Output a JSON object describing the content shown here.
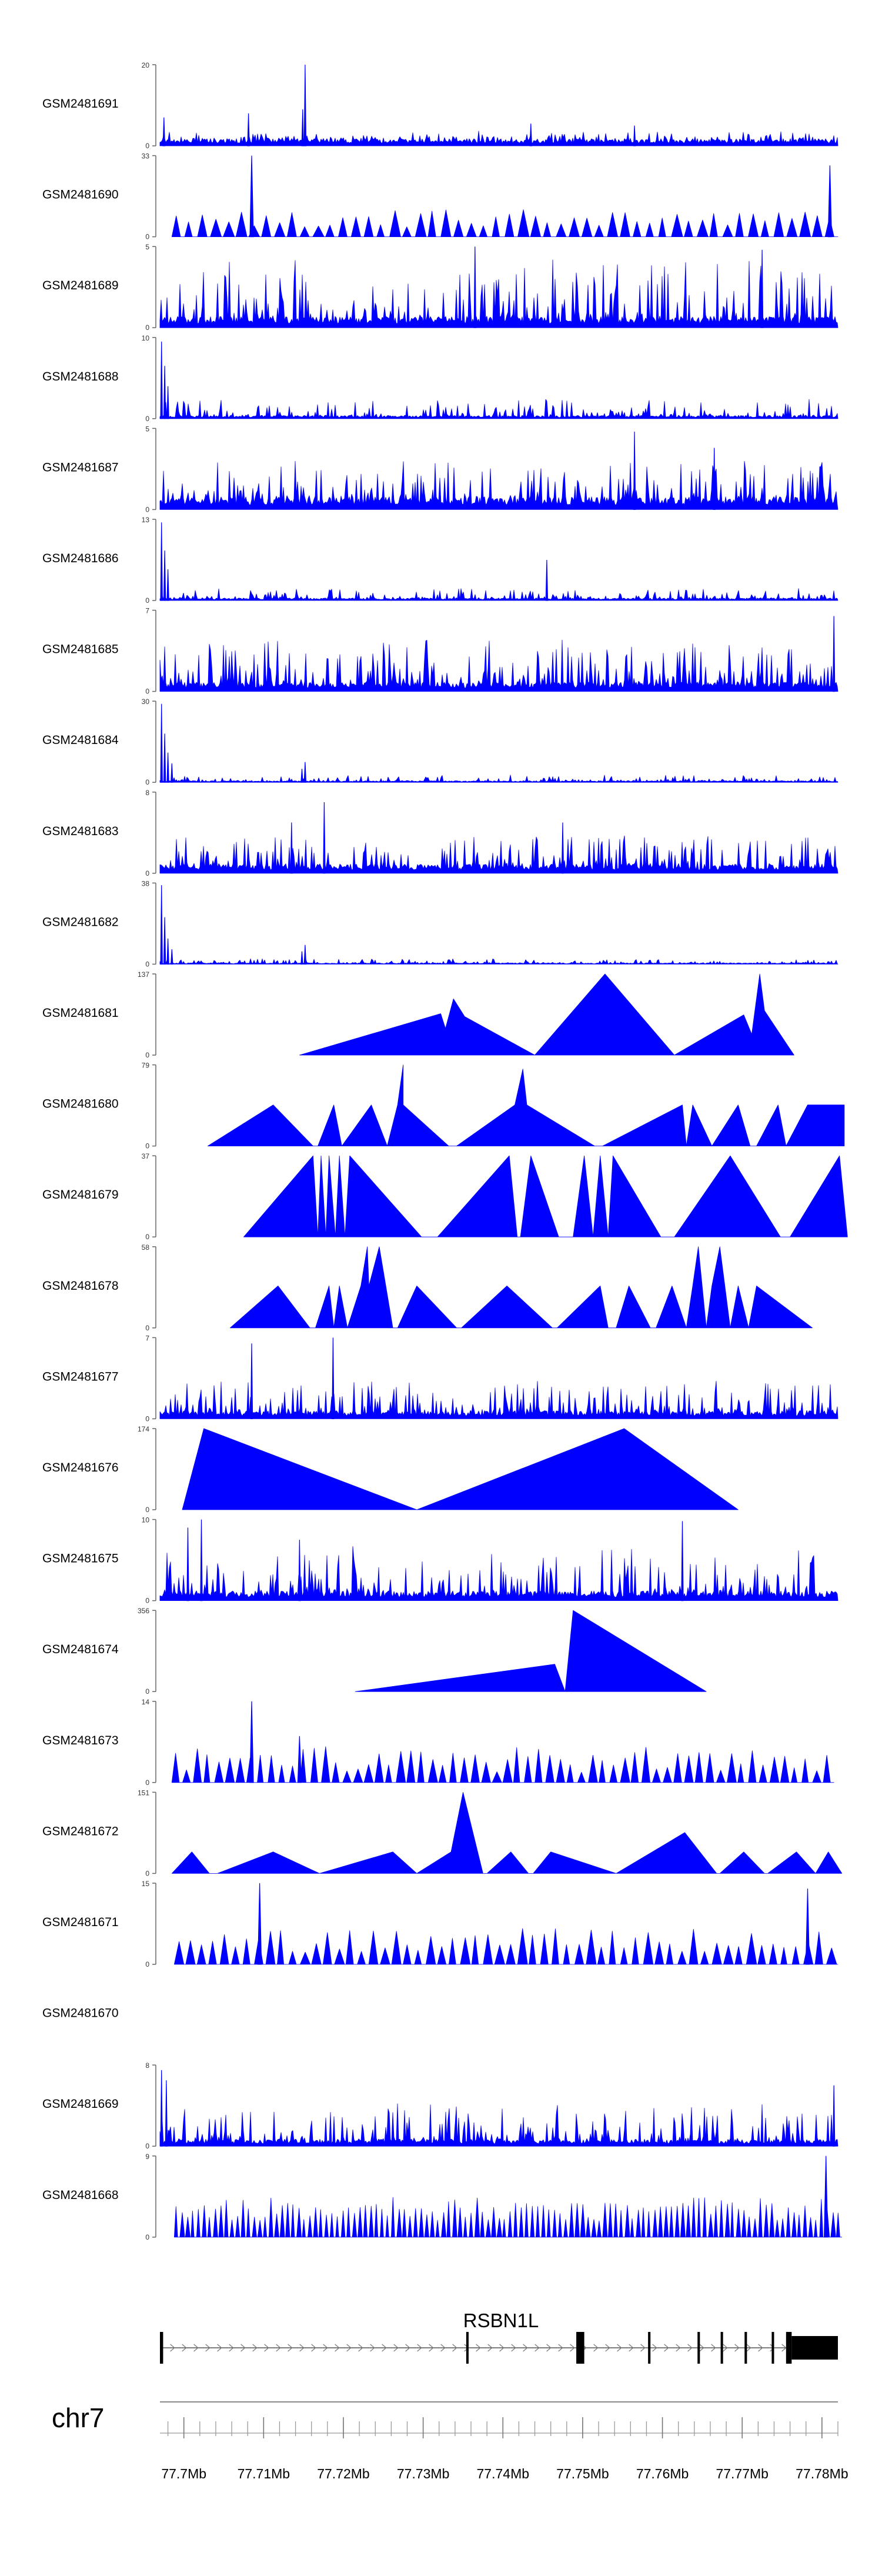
{
  "chart_data": {
    "type": "area",
    "title": "",
    "chromosome": "chr7",
    "x_range_mb": [
      77.697,
      77.782
    ],
    "xlabel": "",
    "x_ticks": [
      "77.7Mb",
      "77.71Mb",
      "77.72Mb",
      "77.73Mb",
      "77.74Mb",
      "77.75Mb",
      "77.76Mb",
      "77.77Mb",
      "77.78Mb"
    ],
    "x_tick_values": [
      77.7,
      77.71,
      77.72,
      77.73,
      77.74,
      77.75,
      77.76,
      77.77,
      77.78
    ],
    "minor_tick_step_mb": 0.002,
    "fill_color": "#0000ff",
    "tracks": [
      {
        "name": "GSM2481691",
        "ymax": 20,
        "ymax_label": "20",
        "ymin_label": "0",
        "style": "dense",
        "baseline": 1.8,
        "noise": 2.2,
        "p": 0.38,
        "spikes": [
          [
            77.6975,
            7
          ],
          [
            77.7081,
            8
          ],
          [
            77.7149,
            9
          ],
          [
            77.7152,
            20
          ],
          [
            77.7435,
            5.5
          ],
          [
            77.7565,
            5
          ]
        ]
      },
      {
        "name": "GSM2481690",
        "ymax": 33,
        "ymax_label": "33",
        "ymin_label": "0",
        "style": "tri",
        "start": 77.6985,
        "end": 77.782,
        "n": 52,
        "pmin": 0.12,
        "pmax": 0.34,
        "spikes": [
          [
            77.7085,
            33
          ],
          [
            77.781,
            29
          ]
        ]
      },
      {
        "name": "GSM2481689",
        "ymax": 5,
        "ymax_label": "5",
        "ymin_label": "0",
        "style": "dense",
        "baseline": 0.7,
        "noise": 3.6,
        "p": 0.42,
        "spikes": [
          [
            77.7365,
            5
          ],
          [
            77.7725,
            4.8
          ]
        ]
      },
      {
        "name": "GSM2481688",
        "ymax": 10,
        "ymax_label": "10",
        "ymin_label": "0",
        "style": "dense",
        "baseline": 0.4,
        "noise": 2.0,
        "p": 0.35,
        "spikes": [
          [
            77.6972,
            9.5
          ],
          [
            77.6976,
            6.5
          ],
          [
            77.698,
            4
          ]
        ]
      },
      {
        "name": "GSM2481687",
        "ymax": 5,
        "ymax_label": "5",
        "ymin_label": "0",
        "style": "dense",
        "baseline": 0.8,
        "noise": 2.3,
        "p": 0.4,
        "spikes": [
          [
            77.7565,
            4.8
          ],
          [
            77.7665,
            3.8
          ]
        ]
      },
      {
        "name": "GSM2481686",
        "ymax": 13,
        "ymax_label": "13",
        "ymin_label": "0",
        "style": "dense",
        "baseline": 0.4,
        "noise": 1.6,
        "p": 0.35,
        "spikes": [
          [
            77.6972,
            12.5
          ],
          [
            77.6976,
            8
          ],
          [
            77.698,
            5
          ],
          [
            77.7455,
            6.5
          ]
        ]
      },
      {
        "name": "GSM2481685",
        "ymax": 7,
        "ymax_label": "7",
        "ymin_label": "0",
        "style": "dense",
        "baseline": 0.8,
        "noise": 3.8,
        "p": 0.45,
        "spikes": [
          [
            77.7815,
            6.5
          ]
        ]
      },
      {
        "name": "GSM2481684",
        "ymax": 30,
        "ymax_label": "30",
        "ymin_label": "0",
        "style": "dense",
        "baseline": 0.6,
        "noise": 2.2,
        "p": 0.35,
        "spikes": [
          [
            77.6972,
            29
          ],
          [
            77.6976,
            18
          ],
          [
            77.698,
            11
          ],
          [
            77.6985,
            7
          ],
          [
            77.7148,
            5
          ],
          [
            77.7152,
            7.5
          ]
        ]
      },
      {
        "name": "GSM2481683",
        "ymax": 8,
        "ymax_label": "8",
        "ymin_label": "0",
        "style": "dense",
        "baseline": 0.9,
        "noise": 3.0,
        "p": 0.42,
        "spikes": [
          [
            77.7176,
            7
          ],
          [
            77.7135,
            5
          ],
          [
            77.7475,
            5
          ]
        ]
      },
      {
        "name": "GSM2481682",
        "ymax": 38,
        "ymax_label": "38",
        "ymin_label": "0",
        "style": "dense",
        "baseline": 0.6,
        "noise": 2.0,
        "p": 0.35,
        "spikes": [
          [
            77.6972,
            37
          ],
          [
            77.6976,
            22
          ],
          [
            77.698,
            12
          ],
          [
            77.6985,
            7
          ],
          [
            77.7148,
            6
          ],
          [
            77.7152,
            9
          ]
        ]
      },
      {
        "name": "GSM2481681",
        "ymax": 137,
        "ymax_label": "137",
        "ymin_label": "0",
        "style": "poly",
        "points": [
          [
            77.7145,
            0
          ],
          [
            77.7322,
            70
          ],
          [
            77.7328,
            45
          ],
          [
            77.7338,
            95
          ],
          [
            77.7352,
            65
          ],
          [
            77.744,
            0
          ],
          [
            77.7528,
            137
          ],
          [
            77.7615,
            0
          ],
          [
            77.7702,
            68
          ],
          [
            77.7712,
            35
          ],
          [
            77.7722,
            137
          ],
          [
            77.7728,
            75
          ],
          [
            77.7765,
            0
          ]
        ]
      },
      {
        "name": "GSM2481680",
        "ymax": 79,
        "ymax_label": "79",
        "ymin_label": "0",
        "style": "poly",
        "points": [
          [
            77.703,
            0
          ],
          [
            77.7112,
            40
          ],
          [
            77.7162,
            0
          ],
          [
            77.7168,
            0
          ],
          [
            77.7188,
            40
          ],
          [
            77.7198,
            0
          ],
          [
            77.7235,
            40
          ],
          [
            77.7255,
            0
          ],
          [
            77.7268,
            40
          ],
          [
            77.7275,
            79
          ],
          [
            77.7275,
            40
          ],
          [
            77.7332,
            0
          ],
          [
            77.7342,
            0
          ],
          [
            77.7415,
            40
          ],
          [
            77.7425,
            75
          ],
          [
            77.743,
            40
          ],
          [
            77.7515,
            0
          ],
          [
            77.7525,
            0
          ],
          [
            77.7625,
            40
          ],
          [
            77.763,
            0
          ],
          [
            77.7638,
            40
          ],
          [
            77.7662,
            0
          ],
          [
            77.7695,
            40
          ],
          [
            77.771,
            0
          ],
          [
            77.7718,
            0
          ],
          [
            77.7745,
            40
          ],
          [
            77.7755,
            0
          ],
          [
            77.7755,
            0
          ],
          [
            77.7782,
            40
          ],
          [
            77.7828,
            40
          ],
          [
            77.7828,
            0
          ]
        ]
      },
      {
        "name": "GSM2481679",
        "ymax": 37,
        "ymax_label": "37",
        "ymin_label": "0",
        "style": "poly",
        "points": [
          [
            77.7075,
            0
          ],
          [
            77.7162,
            37
          ],
          [
            77.7168,
            0
          ],
          [
            77.7172,
            37
          ],
          [
            77.7178,
            0
          ],
          [
            77.7182,
            37
          ],
          [
            77.719,
            0
          ],
          [
            77.7195,
            37
          ],
          [
            77.7202,
            0
          ],
          [
            77.7208,
            37
          ],
          [
            77.7298,
            0
          ],
          [
            77.7318,
            0
          ],
          [
            77.7408,
            37
          ],
          [
            77.7418,
            0
          ],
          [
            77.7422,
            0
          ],
          [
            77.7435,
            37
          ],
          [
            77.747,
            0
          ],
          [
            77.7488,
            0
          ],
          [
            77.7502,
            37
          ],
          [
            77.7513,
            0
          ],
          [
            77.7522,
            37
          ],
          [
            77.7532,
            0
          ],
          [
            77.7538,
            37
          ],
          [
            77.7598,
            0
          ],
          [
            77.7615,
            0
          ],
          [
            77.7685,
            37
          ],
          [
            77.7748,
            0
          ],
          [
            77.776,
            0
          ],
          [
            77.7822,
            37
          ],
          [
            77.7832,
            0
          ]
        ]
      },
      {
        "name": "GSM2481678",
        "ymax": 58,
        "ymax_label": "58",
        "ymin_label": "0",
        "style": "poly",
        "points": [
          [
            77.7058,
            0
          ],
          [
            77.7118,
            30
          ],
          [
            77.7158,
            0
          ],
          [
            77.7165,
            0
          ],
          [
            77.7182,
            30
          ],
          [
            77.7188,
            0
          ],
          [
            77.7195,
            30
          ],
          [
            77.7205,
            0
          ],
          [
            77.7222,
            30
          ],
          [
            77.723,
            58
          ],
          [
            77.7232,
            30
          ],
          [
            77.7245,
            58
          ],
          [
            77.7262,
            0
          ],
          [
            77.7268,
            0
          ],
          [
            77.7292,
            30
          ],
          [
            77.7342,
            0
          ],
          [
            77.7348,
            0
          ],
          [
            77.7405,
            30
          ],
          [
            77.7462,
            0
          ],
          [
            77.7468,
            0
          ],
          [
            77.7522,
            30
          ],
          [
            77.7532,
            0
          ],
          [
            77.7542,
            0
          ],
          [
            77.7558,
            30
          ],
          [
            77.7585,
            0
          ],
          [
            77.7592,
            0
          ],
          [
            77.7612,
            30
          ],
          [
            77.763,
            0
          ],
          [
            77.7638,
            30
          ],
          [
            77.7645,
            58
          ],
          [
            77.7655,
            0
          ],
          [
            77.7662,
            30
          ],
          [
            77.7672,
            58
          ],
          [
            77.7685,
            0
          ],
          [
            77.7695,
            30
          ],
          [
            77.7708,
            0
          ],
          [
            77.7718,
            30
          ],
          [
            77.7788,
            0
          ]
        ]
      },
      {
        "name": "GSM2481677",
        "ymax": 7,
        "ymax_label": "7",
        "ymin_label": "0",
        "style": "dense",
        "baseline": 0.7,
        "noise": 2.6,
        "p": 0.4,
        "spikes": [
          [
            77.7085,
            6.5
          ],
          [
            77.7187,
            7
          ]
        ]
      },
      {
        "name": "GSM2481676",
        "ymax": 174,
        "ymax_label": "174",
        "ymin_label": "0",
        "style": "poly",
        "points": [
          [
            77.6998,
            0
          ],
          [
            77.7025,
            174
          ],
          [
            77.7292,
            0
          ],
          [
            77.7552,
            174
          ],
          [
            77.7695,
            0
          ]
        ]
      },
      {
        "name": "GSM2481675",
        "ymax": 10,
        "ymax_label": "10",
        "ymin_label": "0",
        "style": "dense",
        "baseline": 1.2,
        "noise": 5.5,
        "p": 0.4,
        "spikes": [
          [
            77.7005,
            9
          ],
          [
            77.7022,
            10
          ],
          [
            77.7145,
            7.5
          ],
          [
            77.7625,
            9.8
          ]
        ]
      },
      {
        "name": "GSM2481674",
        "ymax": 356,
        "ymax_label": "356",
        "ymin_label": "0",
        "style": "poly",
        "points": [
          [
            77.7215,
            0
          ],
          [
            77.7465,
            120
          ],
          [
            77.7478,
            0
          ],
          [
            77.7488,
            356
          ],
          [
            77.7655,
            0
          ]
        ]
      },
      {
        "name": "GSM2481673",
        "ymax": 14,
        "ymax_label": "14",
        "ymin_label": "0",
        "style": "tri",
        "start": 77.6985,
        "end": 77.7815,
        "n": 62,
        "pmin": 0.12,
        "pmax": 0.45,
        "spikes": [
          [
            77.7085,
            14
          ],
          [
            77.7145,
            8
          ]
        ]
      },
      {
        "name": "GSM2481672",
        "ymax": 151,
        "ymax_label": "151",
        "ymin_label": "0",
        "style": "poly",
        "points": [
          [
            77.6985,
            0
          ],
          [
            77.701,
            40
          ],
          [
            77.7032,
            0
          ],
          [
            77.7042,
            0
          ],
          [
            77.7112,
            40
          ],
          [
            77.717,
            0
          ],
          [
            77.7262,
            40
          ],
          [
            77.7292,
            0
          ],
          [
            77.7335,
            40
          ],
          [
            77.735,
            151
          ],
          [
            77.7375,
            0
          ],
          [
            77.738,
            0
          ],
          [
            77.741,
            40
          ],
          [
            77.7432,
            0
          ],
          [
            77.7438,
            0
          ],
          [
            77.746,
            40
          ],
          [
            77.7542,
            0
          ],
          [
            77.7542,
            0
          ],
          [
            77.7628,
            76
          ],
          [
            77.7668,
            0
          ],
          [
            77.7672,
            0
          ],
          [
            77.7702,
            40
          ],
          [
            77.7728,
            0
          ],
          [
            77.7732,
            0
          ],
          [
            77.7768,
            40
          ],
          [
            77.7792,
            0
          ],
          [
            77.7792,
            0
          ],
          [
            77.7808,
            40
          ],
          [
            77.7825,
            0
          ]
        ]
      },
      {
        "name": "GSM2481671",
        "ymax": 15,
        "ymax_label": "15",
        "ymin_label": "0",
        "style": "tri",
        "start": 77.6988,
        "end": 77.782,
        "n": 58,
        "pmin": 0.15,
        "pmax": 0.45,
        "spikes": [
          [
            77.7095,
            15
          ],
          [
            77.7782,
            14
          ]
        ]
      },
      {
        "name": "GSM2481670",
        "ymax": null,
        "ymax_label": "",
        "ymin_label": "",
        "style": "empty"
      },
      {
        "name": "GSM2481669",
        "ymax": 8,
        "ymax_label": "8",
        "ymin_label": "0",
        "style": "dense",
        "baseline": 0.7,
        "noise": 3.6,
        "p": 0.42,
        "spikes": [
          [
            77.6972,
            7.5
          ],
          [
            77.6978,
            6.5
          ],
          [
            77.7815,
            6
          ]
        ]
      },
      {
        "name": "GSM2481668",
        "ymax": 9,
        "ymax_label": "9",
        "ymin_label": "0",
        "style": "tri",
        "start": 77.6988,
        "end": 77.7825,
        "n": 120,
        "pmin": 0.2,
        "pmax": 0.5,
        "spikes": [
          [
            77.7805,
            9
          ]
        ]
      }
    ],
    "gene": {
      "name": "RSBN1L",
      "strand": "+",
      "start": 77.6972,
      "end": 77.782,
      "exons": [
        [
          77.697,
          77.6974
        ],
        [
          77.7354,
          77.7357
        ],
        [
          77.7492,
          77.7502
        ],
        [
          77.7582,
          77.7585
        ],
        [
          77.7644,
          77.7647
        ],
        [
          77.7673,
          77.7676
        ],
        [
          77.7703,
          77.7706
        ],
        [
          77.7737,
          77.774
        ],
        [
          77.7755,
          77.7762
        ]
      ],
      "utr3": [
        77.7762,
        77.782
      ]
    }
  }
}
